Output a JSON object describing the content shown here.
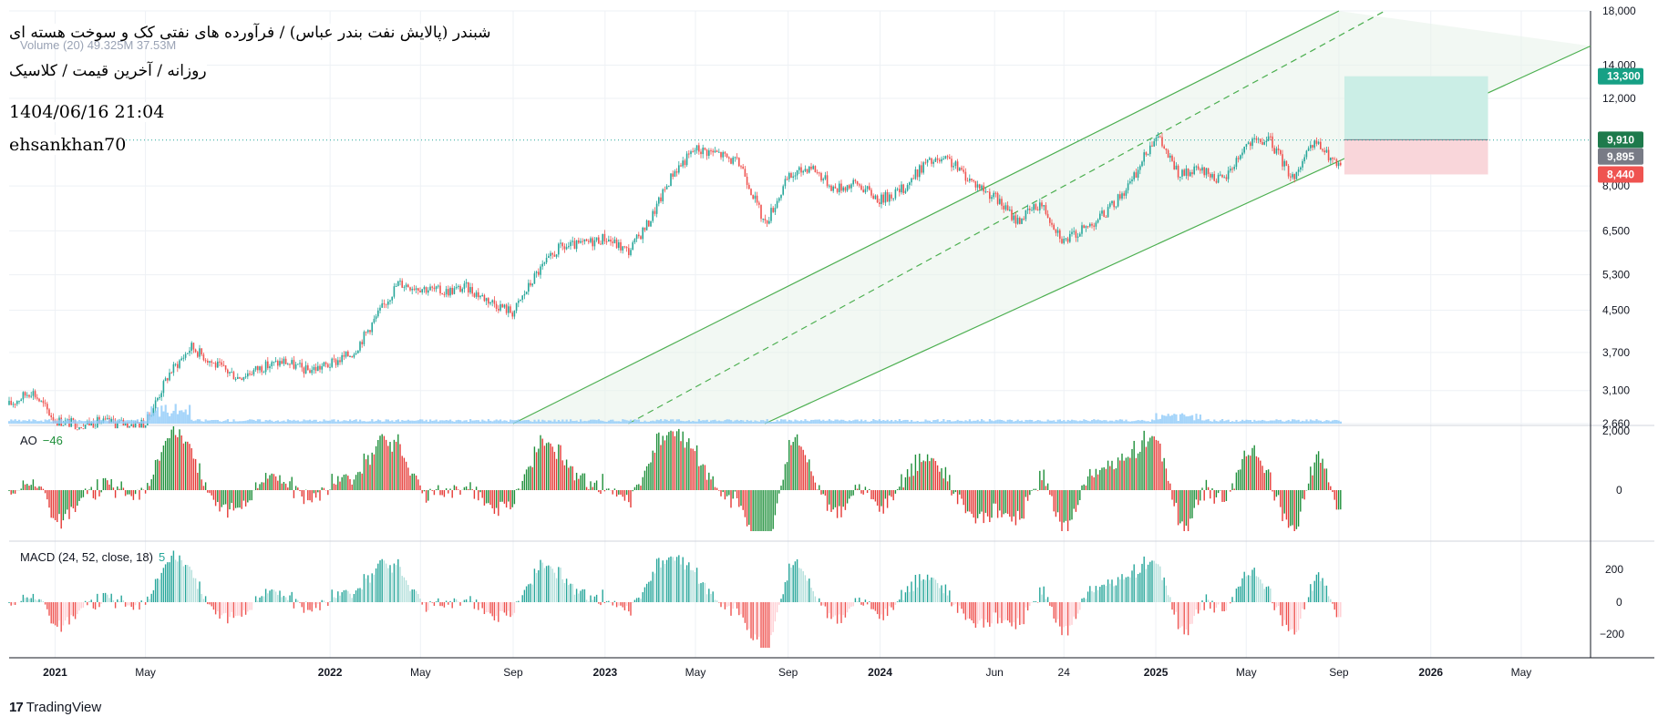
{
  "header": {
    "title": "شبندر (پالایش نفت بندر عباس) / فرآورده های نفتی کک و سوخت هسته ای",
    "subtitle": "روزانه / آخرین قیمت / کلاسیک",
    "datetime": "1404/06/16 21:04",
    "author": "ehsankhan70",
    "volume_label": "Volume (20)  49.325M  37.53M"
  },
  "indicators": {
    "ao_name": "AO",
    "ao_value": "−46",
    "macd_name": "MACD (24, 52, close, 18)",
    "macd_value": "5"
  },
  "branding": {
    "logo": "17",
    "name": "TradingView"
  },
  "colors": {
    "up": "#26a69a",
    "down": "#ef5350",
    "ao_up": "#1e8f3a",
    "ao_down": "#e53935",
    "channel": "#4caf50",
    "grid": "#eef1f5",
    "axis_text": "#131722",
    "target_zone": "#cbeee6",
    "stop_zone": "#f9d6da",
    "volume": "#90caf9"
  },
  "chart_data": {
    "type": "candlestick",
    "scale": "log",
    "ylim": [
      2660,
      18000
    ],
    "price_ticks": [
      18000,
      14000,
      12000,
      8000,
      6500,
      5300,
      4500,
      3700,
      3100,
      2660
    ],
    "price_tick_labels": [
      "18,000",
      "14,000",
      "12,000",
      "8,000",
      "6,500",
      "5,300",
      "4,500",
      "3,700",
      "3,100",
      "2,660"
    ],
    "price_badges": [
      {
        "value": 13300,
        "label": "13,300",
        "color": "#17a085"
      },
      {
        "value": 9910,
        "label": "9,910",
        "color": "#1e7a4c"
      },
      {
        "value": 9895,
        "label": "9,895",
        "color": "#787b86"
      },
      {
        "value": 8440,
        "label": "8,440",
        "color": "#ef5350"
      }
    ],
    "x_ticks": [
      "2021",
      "May",
      "2022",
      "May",
      "Sep",
      "2023",
      "May",
      "Sep",
      "2024",
      "Jun",
      "24",
      "2025",
      "May",
      "Sep",
      "2026",
      "May"
    ],
    "close_series": [
      {
        "t": "2020-11",
        "v": 2900
      },
      {
        "t": "2020-12",
        "v": 3100
      },
      {
        "t": "2021-01",
        "v": 2700
      },
      {
        "t": "2021-02",
        "v": 2650
      },
      {
        "t": "2021-03",
        "v": 2680
      },
      {
        "t": "2021-04",
        "v": 2660
      },
      {
        "t": "2021-05",
        "v": 2660
      },
      {
        "t": "2021-06",
        "v": 3350
      },
      {
        "t": "2021-07",
        "v": 3800
      },
      {
        "t": "2021-08",
        "v": 3500
      },
      {
        "t": "2021-09",
        "v": 3300
      },
      {
        "t": "2021-10",
        "v": 3450
      },
      {
        "t": "2021-11",
        "v": 3550
      },
      {
        "t": "2021-12",
        "v": 3400
      },
      {
        "t": "2022-01",
        "v": 3500
      },
      {
        "t": "2022-02",
        "v": 3700
      },
      {
        "t": "2022-03",
        "v": 4300
      },
      {
        "t": "2022-04",
        "v": 5100
      },
      {
        "t": "2022-05",
        "v": 5000
      },
      {
        "t": "2022-06",
        "v": 4900
      },
      {
        "t": "2022-07",
        "v": 5000
      },
      {
        "t": "2022-08",
        "v": 4700
      },
      {
        "t": "2022-09",
        "v": 4450
      },
      {
        "t": "2022-10",
        "v": 5300
      },
      {
        "t": "2022-11",
        "v": 6000
      },
      {
        "t": "2022-12",
        "v": 6100
      },
      {
        "t": "2023-01",
        "v": 6300
      },
      {
        "t": "2023-02",
        "v": 5900
      },
      {
        "t": "2023-03",
        "v": 6800
      },
      {
        "t": "2023-04",
        "v": 8500
      },
      {
        "t": "2023-05",
        "v": 9500
      },
      {
        "t": "2023-06",
        "v": 9300
      },
      {
        "t": "2023-07",
        "v": 8800
      },
      {
        "t": "2023-08",
        "v": 6700
      },
      {
        "t": "2023-09",
        "v": 8300
      },
      {
        "t": "2023-10",
        "v": 8800
      },
      {
        "t": "2023-11",
        "v": 7900
      },
      {
        "t": "2023-12",
        "v": 8100
      },
      {
        "t": "2024-01",
        "v": 7500
      },
      {
        "t": "2024-02",
        "v": 7900
      },
      {
        "t": "2024-03",
        "v": 8900
      },
      {
        "t": "2024-04",
        "v": 9000
      },
      {
        "t": "2024-05",
        "v": 8200
      },
      {
        "t": "2024-06",
        "v": 7600
      },
      {
        "t": "2024-07",
        "v": 6800
      },
      {
        "t": "2024-08",
        "v": 7400
      },
      {
        "t": "2024-09",
        "v": 6200
      },
      {
        "t": "2024-10",
        "v": 6600
      },
      {
        "t": "2024-11",
        "v": 7200
      },
      {
        "t": "2024-12",
        "v": 8200
      },
      {
        "t": "2025-01",
        "v": 10200
      },
      {
        "t": "2025-02",
        "v": 8400
      },
      {
        "t": "2025-03",
        "v": 8600
      },
      {
        "t": "2025-04",
        "v": 8200
      },
      {
        "t": "2025-05",
        "v": 9700
      },
      {
        "t": "2025-06",
        "v": 9900
      },
      {
        "t": "2025-07",
        "v": 8300
      },
      {
        "t": "2025-08",
        "v": 9800
      },
      {
        "t": "2025-09",
        "v": 8700
      }
    ],
    "channel": {
      "upper": [
        [
          "2022-09",
          2660
        ],
        [
          "2025-09",
          18000
        ]
      ],
      "middle": [
        [
          "2023-02",
          2660
        ],
        [
          "2025-11",
          18000
        ]
      ],
      "lower": [
        [
          "2023-08",
          2660
        ],
        [
          "2026-08",
          15300
        ]
      ]
    },
    "position": {
      "entry": 9910,
      "target": 13300,
      "stop": 8440
    },
    "ao": {
      "name": "AO",
      "last": -46,
      "ticks": [
        2000,
        0
      ],
      "tick_labels": [
        "2,000",
        "0"
      ]
    },
    "macd": {
      "name": "MACD (24, 52, close, 18)",
      "last": 5,
      "ticks": [
        200,
        0,
        -200
      ],
      "tick_labels": [
        "200",
        "0",
        "−200"
      ]
    }
  }
}
